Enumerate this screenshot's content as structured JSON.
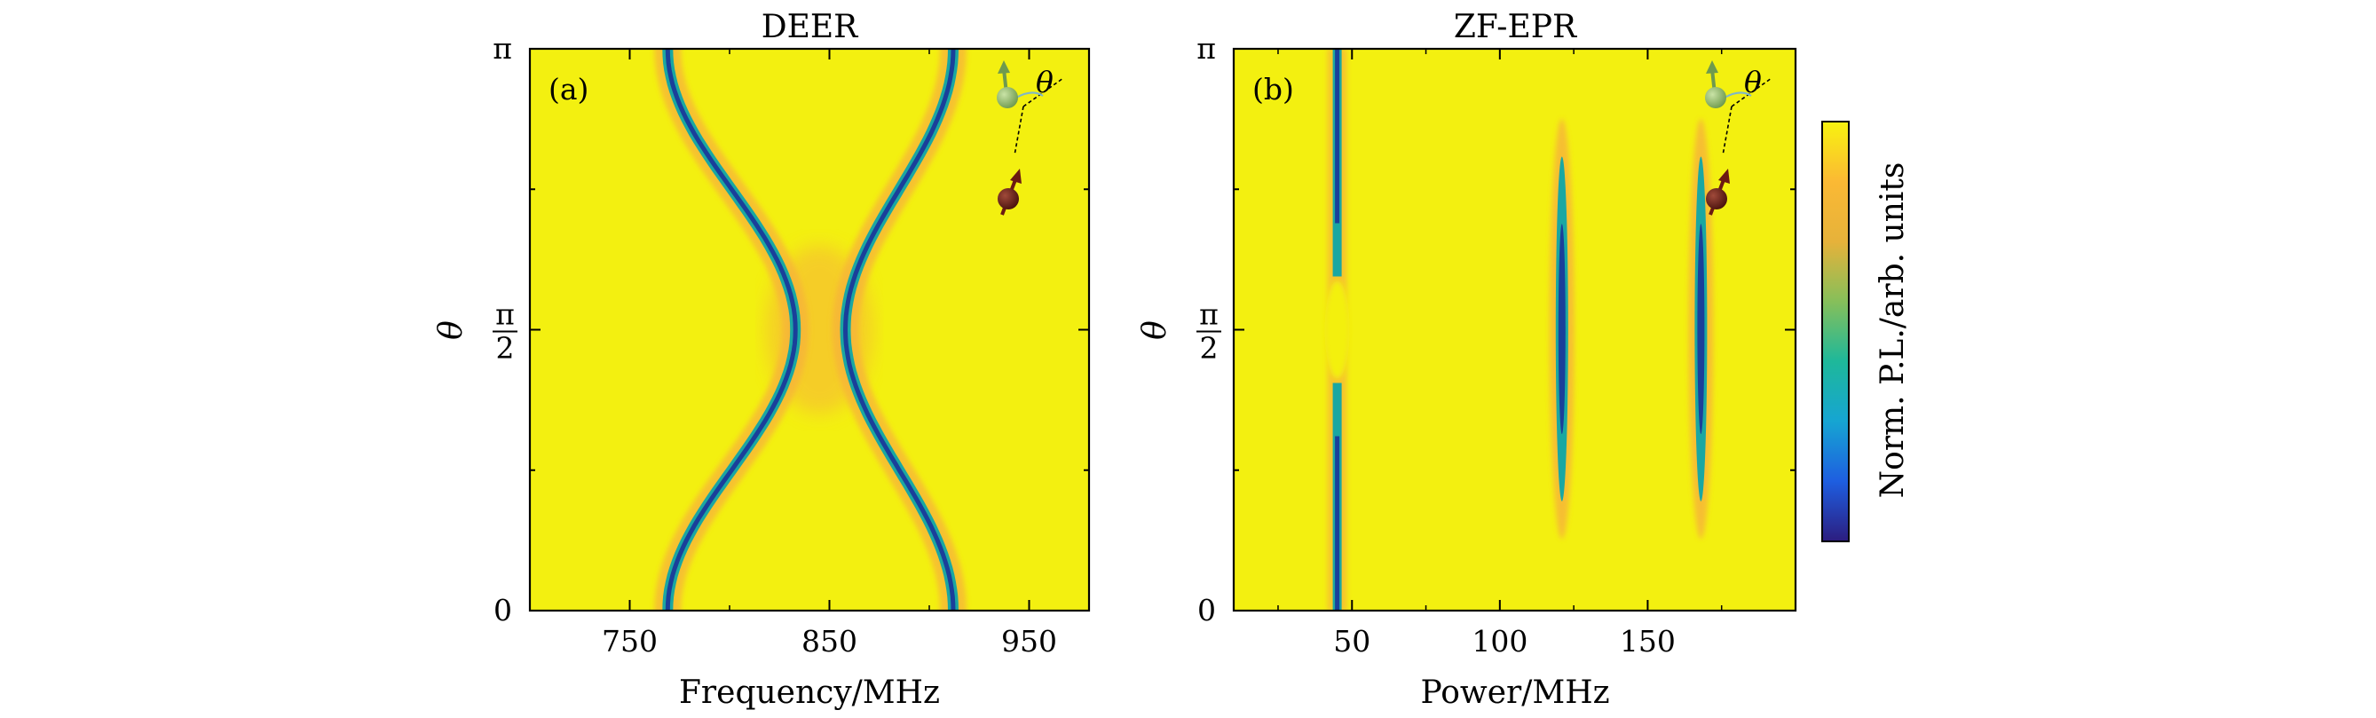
{
  "chart_data": [
    {
      "type": "heatmap",
      "panel_label": "(a)",
      "title": "DEER",
      "xlabel": "Frequency/MHz",
      "ylabel": "θ",
      "xlim": [
        700,
        980
      ],
      "ylim": [
        0,
        3.1416
      ],
      "xticks": [
        750,
        850,
        950
      ],
      "xtick_labels": [
        "750",
        "850",
        "950"
      ],
      "yticks": [
        0,
        1.5708,
        3.1416
      ],
      "ytick_labels": [
        "0",
        "π/2",
        "π"
      ],
      "ytick_label_parts": {
        "zero": "0",
        "half_num": "π",
        "half_den": "2",
        "pi": "π"
      },
      "colors": {
        "background": "#f3f010",
        "halo": "#f7b23a",
        "trough_mid": "#1aa7a2",
        "trough_core": "#1a3f9a"
      },
      "resonances": [
        {
          "name": "lower branch",
          "f_at_0": 769,
          "f_at_pi_half": 833,
          "f_at_pi": 769
        },
        {
          "name": "upper branch",
          "f_at_0": 912,
          "f_at_pi_half": 858,
          "f_at_pi": 912
        }
      ],
      "inset": {
        "angle_label": "θ"
      }
    },
    {
      "type": "heatmap",
      "panel_label": "(b)",
      "title": "ZF-EPR",
      "xlabel": "Power/MHz",
      "ylabel": "θ",
      "xlim": [
        10,
        200
      ],
      "ylim": [
        0,
        3.1416
      ],
      "xticks": [
        50,
        100,
        150
      ],
      "xtick_labels": [
        "50",
        "100",
        "150"
      ],
      "yticks": [
        0,
        1.5708,
        3.1416
      ],
      "ytick_labels": [
        "0",
        "π/2",
        "π"
      ],
      "ytick_label_parts": {
        "zero": "0",
        "half_num": "π",
        "half_den": "2",
        "pi": "π"
      },
      "resonances": [
        {
          "name": "line 1",
          "x": 45,
          "theta_range": [
            0,
            3.1416
          ],
          "depth_profile": "vanishes near π/2"
        },
        {
          "name": "line 2",
          "x": 121,
          "theta_range": [
            0.4,
            2.75
          ],
          "depth_profile": "deepest at π/2"
        },
        {
          "name": "line 3",
          "x": 168,
          "theta_range": [
            0.4,
            2.75
          ],
          "depth_profile": "deepest at π/2"
        }
      ],
      "inset": {
        "angle_label": "θ"
      }
    }
  ],
  "colorbar": {
    "label": "Norm. P.L./arb. units",
    "stops": [
      "#2c1d7f",
      "#1e5ee0",
      "#16a5d2",
      "#1eb89a",
      "#86bf5a",
      "#e6b23a",
      "#fbb934",
      "#f8f30f"
    ]
  }
}
